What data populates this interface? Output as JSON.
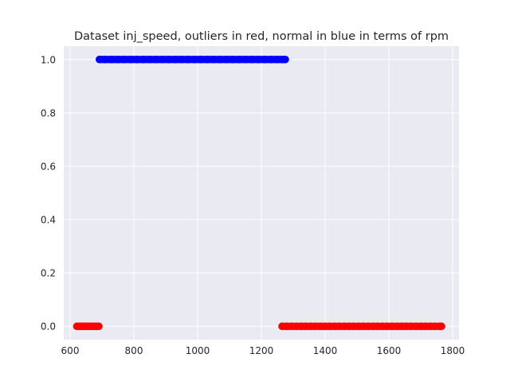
{
  "chart_data": {
    "type": "scatter",
    "title": "Dataset inj_speed, outliers in red, normal in blue in terms of rpm",
    "xlabel": "",
    "ylabel": "",
    "xlim": [
      580,
      1820
    ],
    "ylim": [
      -0.05,
      1.05
    ],
    "x_ticks": [
      600,
      800,
      1000,
      1200,
      1400,
      1600,
      1800
    ],
    "y_ticks": [
      0.0,
      0.2,
      0.4,
      0.6,
      0.8,
      1.0
    ],
    "x_tick_labels": [
      "600",
      "800",
      "1000",
      "1200",
      "1400",
      "1600",
      "1800"
    ],
    "y_tick_labels": [
      "0.0",
      "0.2",
      "0.4",
      "0.6",
      "0.8",
      "1.0"
    ],
    "grid": true,
    "background": "#eaeaf2",
    "series": [
      {
        "color": "#ff0000",
        "y": 0,
        "x": [
          621,
          628,
          635,
          642,
          649,
          656,
          663,
          670,
          677,
          684,
          690
        ]
      },
      {
        "color": "#0000ff",
        "y": 1,
        "x": [
          692,
          710,
          730,
          750,
          770,
          790,
          810,
          830,
          850,
          870,
          890,
          910,
          930,
          950,
          970,
          990,
          1010,
          1030,
          1050,
          1070,
          1090,
          1110,
          1130,
          1150,
          1170,
          1190,
          1210,
          1230,
          1250,
          1265,
          1275
        ]
      },
      {
        "color": "#ff0000",
        "y": 0,
        "x": [
          1265,
          1280,
          1295,
          1310,
          1325,
          1340,
          1355,
          1370,
          1385,
          1400,
          1415,
          1430,
          1445,
          1460,
          1475,
          1490,
          1505,
          1520,
          1535,
          1550,
          1565,
          1580,
          1595,
          1610,
          1625,
          1640,
          1655,
          1670,
          1685,
          1700,
          1715,
          1730,
          1745,
          1760,
          1765
        ]
      }
    ]
  }
}
